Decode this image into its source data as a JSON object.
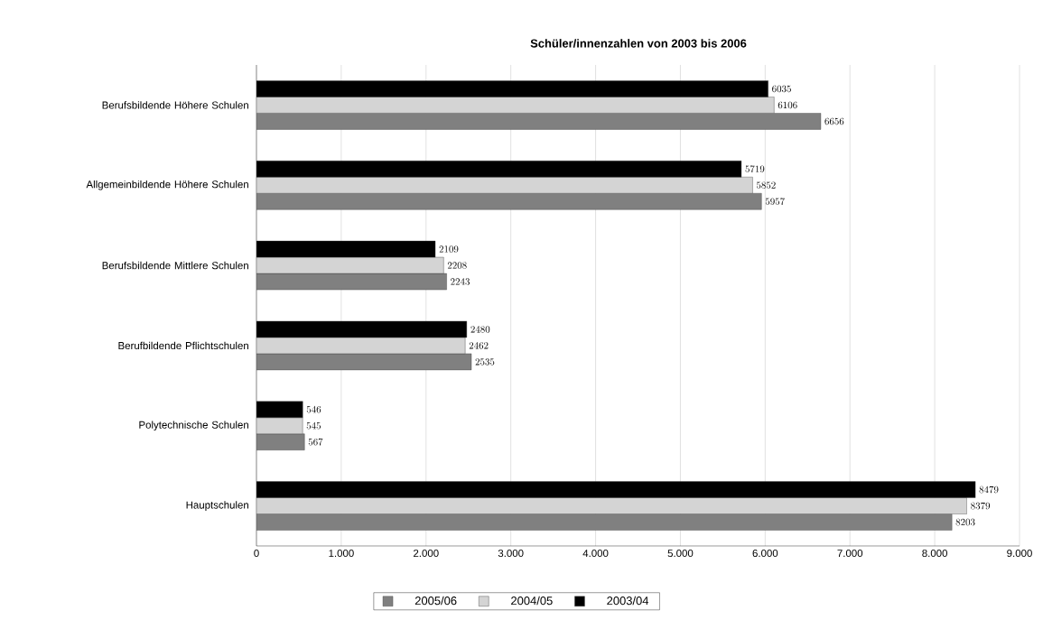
{
  "chart_data": {
    "type": "bar",
    "orientation": "horizontal",
    "title": "Schüler/innenzahlen von 2003 bis 2006",
    "categories": [
      "Berufsbildende Höhere Schulen",
      "Allgemeinbildende Höhere Schulen",
      "Berufsbildende Mittlere Schulen",
      "Berufbildende Pflichtschulen",
      "Polytechnische Schulen",
      "Hauptschulen"
    ],
    "series": [
      {
        "name": "2005/06",
        "color": "#808080",
        "values": [
          6656,
          5957,
          2243,
          2535,
          567,
          8203
        ]
      },
      {
        "name": "2004/05",
        "color": "#d4d4d4",
        "values": [
          6106,
          5852,
          2208,
          2462,
          545,
          8379
        ]
      },
      {
        "name": "2003/04",
        "color": "#000000",
        "values": [
          6035,
          5719,
          2109,
          2480,
          546,
          8479
        ]
      }
    ],
    "xlim": [
      0,
      9000
    ],
    "xticks": [
      0,
      {
        "value": 1000,
        "label": "1.000"
      },
      {
        "value": 2000,
        "label": "2.000"
      },
      {
        "value": 3000,
        "label": "3.000"
      },
      {
        "value": 4000,
        "label": "4.000"
      },
      {
        "value": 5000,
        "label": "5.000"
      },
      {
        "value": 6000,
        "label": "6.000"
      },
      {
        "value": 7000,
        "label": "7.000"
      },
      {
        "value": 8000,
        "label": "8.000"
      },
      {
        "value": 9000,
        "label": "9.000"
      }
    ],
    "grid": "x",
    "data_labels": true,
    "legend": "bottom"
  }
}
